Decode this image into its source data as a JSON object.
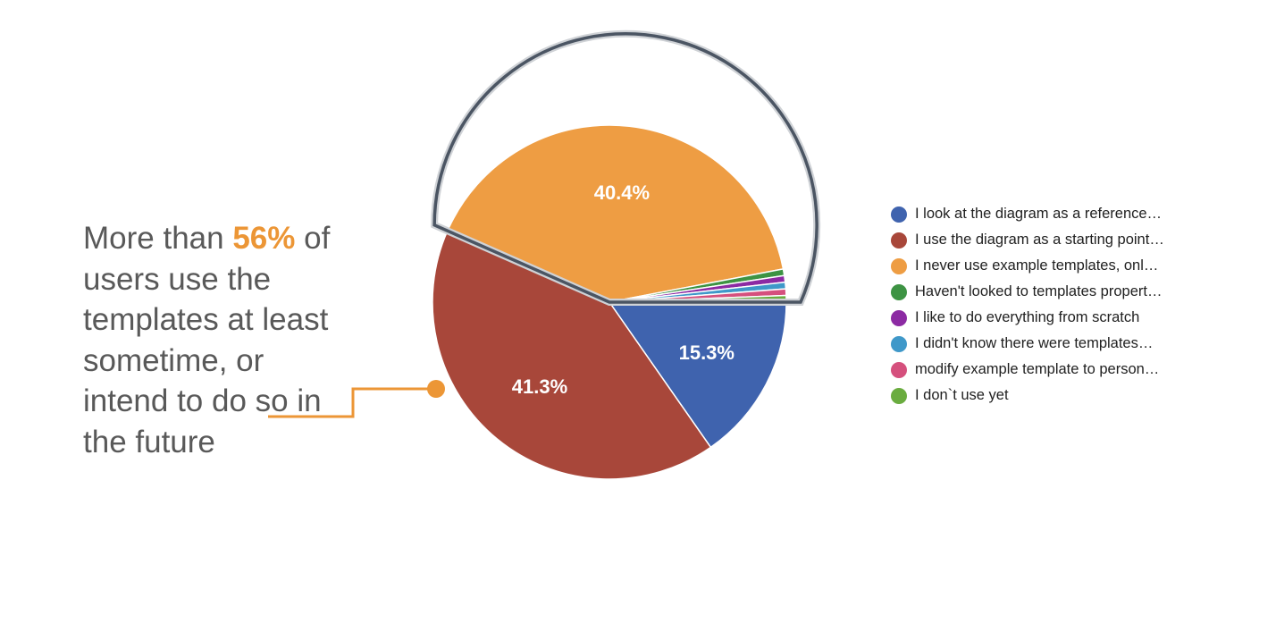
{
  "callout": {
    "line1_pre": "More than ",
    "line1_highlight": "56%",
    "line1_post": " of",
    "line2": "users use the",
    "line3": "templates at least",
    "line4": "sometime, or",
    "line5_pre": "intend to do ",
    "line5_under": "so in",
    "line6": "the future",
    "highlight_color": "#ec9636"
  },
  "chart_data": {
    "type": "pie",
    "slices": [
      {
        "label": "I look at the diagram as a reference…",
        "value": 15.3,
        "display": "15.3%",
        "color": "#3f63ae",
        "highlighted": false
      },
      {
        "label": "I use the diagram as a starting point…",
        "value": 41.3,
        "display": "41.3%",
        "color": "#a8473a",
        "highlighted": true
      },
      {
        "label": "I never use example templates, onl…",
        "value": 40.4,
        "display": "40.4%",
        "color": "#ee9d43",
        "highlighted": false
      },
      {
        "label": "Haven't looked to templates propert…",
        "value": 0.6,
        "display": "",
        "color": "#3d9343",
        "highlighted": false
      },
      {
        "label": "I like to do everything from scratch",
        "value": 0.6,
        "display": "",
        "color": "#8c2aa3",
        "highlighted": false
      },
      {
        "label": "I didn't know there were templates…",
        "value": 0.6,
        "display": "",
        "color": "#3f98c9",
        "highlighted": false
      },
      {
        "label": "modify example template to person…",
        "value": 0.6,
        "display": "",
        "color": "#d5507d",
        "highlighted": false
      },
      {
        "label": "I don`t use yet",
        "value": 0.6,
        "display": "",
        "color": "#6aac3f",
        "highlighted": false
      }
    ],
    "start_angle_deg": 90,
    "direction": "clockwise",
    "legend_position": "right"
  }
}
